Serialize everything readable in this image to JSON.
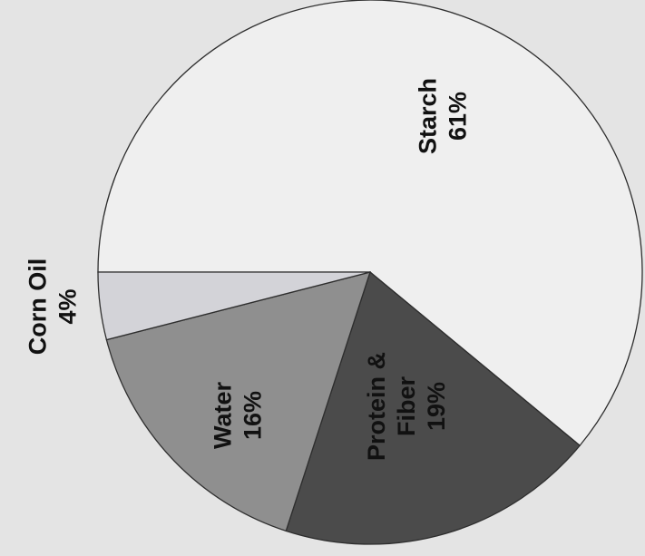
{
  "chart_data": {
    "type": "pie",
    "orientation": "rotated 90 degrees counter-clockwise",
    "slices": [
      {
        "label_lines": [
          "Starch",
          "61%"
        ],
        "value": 61,
        "color": "#efefef"
      },
      {
        "label_lines": [
          "Protein &",
          "Fiber",
          "19%"
        ],
        "value": 19,
        "color": "#4b4b4b"
      },
      {
        "label_lines": [
          "Water",
          "16%"
        ],
        "value": 16,
        "color": "#8f8f8f"
      },
      {
        "label_lines": [
          "Corn Oil",
          "4%"
        ],
        "value": 4,
        "color": "#d3d3d8"
      }
    ],
    "edge_color": "#2e2e2e",
    "background_color": "#e4e4e4"
  }
}
